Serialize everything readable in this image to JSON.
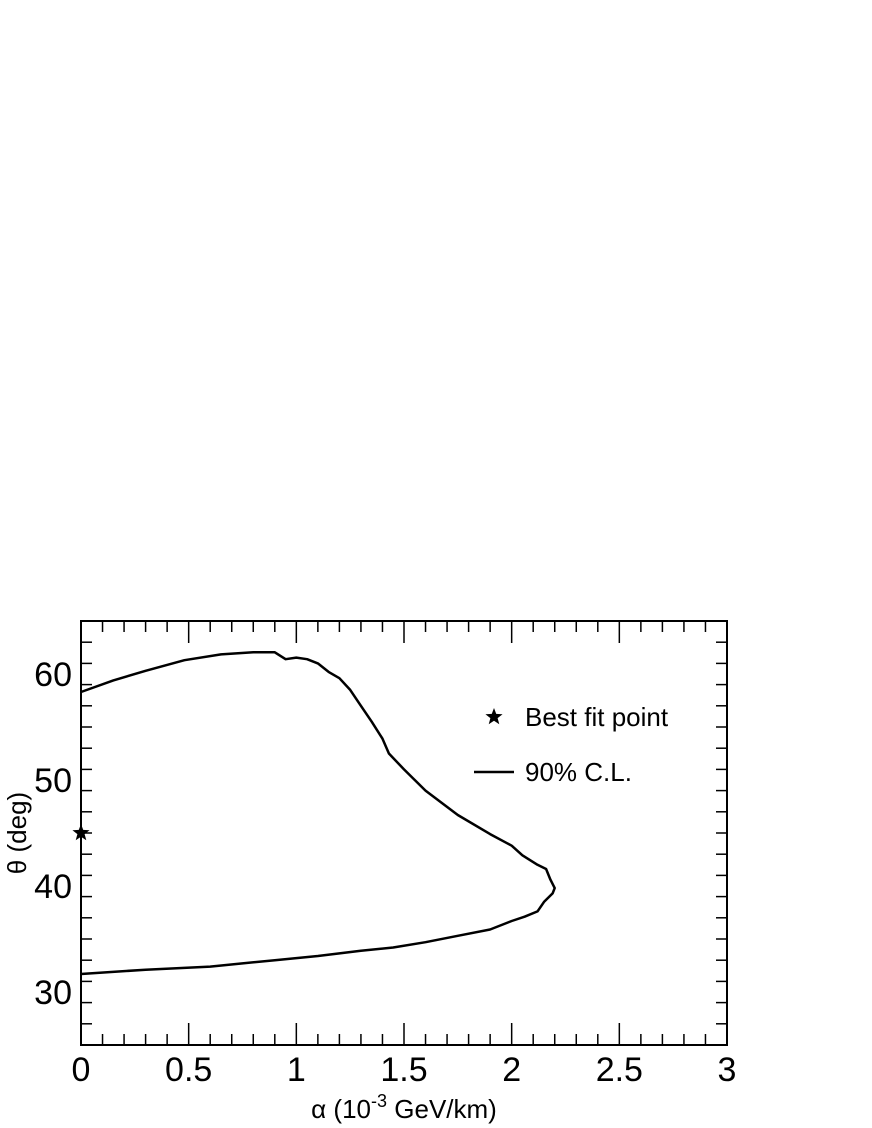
{
  "chart_data": {
    "type": "line",
    "xlabel": {
      "main": "α (10",
      "sup": "-3",
      "rest": " GeV/km)"
    },
    "ylabel": "θ (deg)",
    "xlim": [
      0,
      3
    ],
    "ylim": [
      25,
      65
    ],
    "x_ticks": [
      0,
      0.5,
      1,
      1.5,
      2,
      2.5,
      3
    ],
    "x_tick_labels": [
      "0",
      "0.5",
      "1",
      "1.5",
      "2",
      "2.5",
      "3"
    ],
    "y_ticks": [
      30,
      40,
      50,
      60
    ],
    "y_tick_labels": [
      "30",
      "40",
      "50",
      "60"
    ],
    "x_minor_step": 0.1,
    "y_minor_step": 2,
    "grid": false,
    "legend": {
      "placement": "top-right",
      "entries": [
        {
          "marker": "star",
          "label": "Best fit point"
        },
        {
          "marker": "line",
          "label": "90% C.L."
        }
      ]
    },
    "best_fit": {
      "x": 0.0,
      "y": 45.0
    },
    "series": [
      {
        "label": "90% C.L.",
        "points": [
          [
            0.0,
            58.3
          ],
          [
            0.15,
            59.4
          ],
          [
            0.3,
            60.3
          ],
          [
            0.48,
            61.3
          ],
          [
            0.65,
            61.85
          ],
          [
            0.8,
            62.05
          ],
          [
            0.9,
            62.05
          ],
          [
            0.95,
            61.4
          ],
          [
            1.0,
            61.55
          ],
          [
            1.05,
            61.4
          ],
          [
            1.1,
            61.0
          ],
          [
            1.15,
            60.2
          ],
          [
            1.2,
            59.6
          ],
          [
            1.25,
            58.5
          ],
          [
            1.3,
            57.0
          ],
          [
            1.35,
            55.5
          ],
          [
            1.4,
            53.9
          ],
          [
            1.43,
            52.5
          ],
          [
            1.5,
            51.0
          ],
          [
            1.6,
            49.0
          ],
          [
            1.75,
            46.7
          ],
          [
            1.9,
            44.9
          ],
          [
            2.0,
            43.8
          ],
          [
            2.05,
            42.9
          ],
          [
            2.12,
            42.0
          ],
          [
            2.16,
            41.6
          ],
          [
            2.18,
            40.6
          ],
          [
            2.2,
            39.8
          ],
          [
            2.19,
            39.3
          ],
          [
            2.15,
            38.5
          ],
          [
            2.12,
            37.6
          ],
          [
            2.06,
            37.1
          ],
          [
            2.0,
            36.7
          ],
          [
            1.9,
            35.9
          ],
          [
            1.75,
            35.3
          ],
          [
            1.6,
            34.7
          ],
          [
            1.45,
            34.2
          ],
          [
            1.3,
            33.9
          ],
          [
            1.1,
            33.4
          ],
          [
            0.9,
            33.0
          ],
          [
            0.75,
            32.7
          ],
          [
            0.6,
            32.4
          ],
          [
            0.3,
            32.1
          ],
          [
            0.0,
            31.7
          ]
        ]
      }
    ]
  }
}
